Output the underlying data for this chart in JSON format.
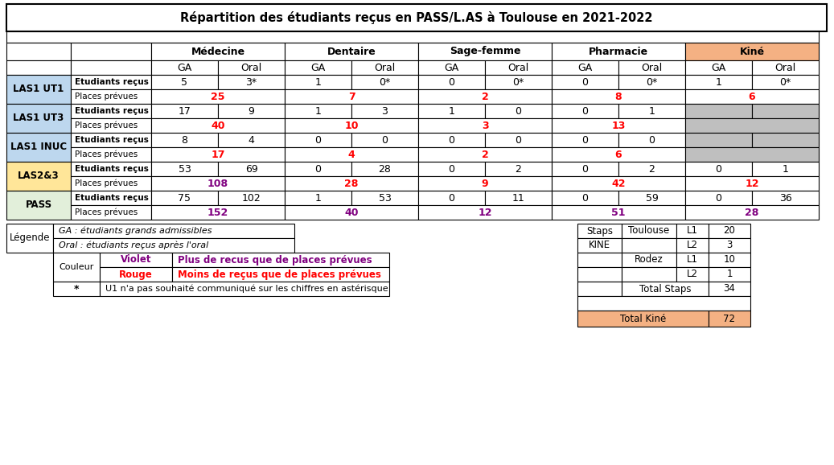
{
  "title": "Répartition des étudiants reçus en PASS/L.AS à Toulouse en 2021-2022",
  "kine_header_bg": "#f4b183",
  "blue_row_bg": "#bdd7ee",
  "yellow_row_bg": "#ffe699",
  "green_row_bg": "#e2efda",
  "gray_cell_bg": "#bfbfbf",
  "orange_total_bg": "#f4b183",
  "col_headers_top": [
    "Médecine",
    "Dentaire",
    "Sage-femme",
    "Pharmacie",
    "Kiné"
  ],
  "col_headers_sub": [
    "GA",
    "Oral",
    "GA",
    "Oral",
    "GA",
    "Oral",
    "GA",
    "Oral",
    "GA",
    "Oral"
  ],
  "row_groups": [
    {
      "label": "LAS1 UT1",
      "bg": "#bdd7ee",
      "rows": [
        {
          "type": "etudiants",
          "label": "Etudiants reçus",
          "values": [
            "5",
            "3*",
            "1",
            "0*",
            "0",
            "0*",
            "0",
            "0*",
            "1",
            "0*"
          ],
          "value_colors": [
            "black",
            "black",
            "black",
            "black",
            "black",
            "black",
            "black",
            "black",
            "black",
            "black"
          ]
        },
        {
          "type": "places",
          "label": "Places prévues",
          "pair_values": [
            "25",
            "7",
            "2",
            "8",
            "6"
          ],
          "pair_colors": [
            "red",
            "red",
            "red",
            "red",
            "red"
          ]
        }
      ]
    },
    {
      "label": "LAS1 UT3",
      "bg": "#bdd7ee",
      "rows": [
        {
          "type": "etudiants",
          "label": "Etudiants reçus",
          "values": [
            "17",
            "9",
            "1",
            "3",
            "1",
            "0",
            "0",
            "1",
            "",
            ""
          ],
          "value_colors": [
            "black",
            "black",
            "black",
            "black",
            "black",
            "black",
            "black",
            "black",
            "",
            ""
          ]
        },
        {
          "type": "places",
          "label": "Places prévues",
          "pair_values": [
            "40",
            "10",
            "3",
            "13",
            ""
          ],
          "pair_colors": [
            "red",
            "red",
            "red",
            "red",
            ""
          ]
        }
      ]
    },
    {
      "label": "LAS1 INUC",
      "bg": "#bdd7ee",
      "rows": [
        {
          "type": "etudiants",
          "label": "Etudiants reçus",
          "values": [
            "8",
            "4",
            "0",
            "0",
            "0",
            "0",
            "0",
            "0",
            "",
            ""
          ],
          "value_colors": [
            "black",
            "black",
            "black",
            "black",
            "black",
            "black",
            "black",
            "black",
            "",
            ""
          ]
        },
        {
          "type": "places",
          "label": "Places prévues",
          "pair_values": [
            "17",
            "4",
            "2",
            "6",
            ""
          ],
          "pair_colors": [
            "red",
            "red",
            "red",
            "red",
            ""
          ]
        }
      ]
    },
    {
      "label": "LAS2&3",
      "bg": "#ffe699",
      "rows": [
        {
          "type": "etudiants",
          "label": "Etudiants reçus",
          "values": [
            "53",
            "69",
            "0",
            "28",
            "0",
            "2",
            "0",
            "2",
            "0",
            "1"
          ],
          "value_colors": [
            "black",
            "black",
            "black",
            "black",
            "black",
            "black",
            "black",
            "black",
            "black",
            "black"
          ]
        },
        {
          "type": "places",
          "label": "Places prévues",
          "pair_values": [
            "108",
            "28",
            "9",
            "42",
            "12"
          ],
          "pair_colors": [
            "purple",
            "red",
            "red",
            "red",
            "red"
          ]
        }
      ]
    },
    {
      "label": "PASS",
      "bg": "#e2efda",
      "rows": [
        {
          "type": "etudiants",
          "label": "Etudiants reçus",
          "values": [
            "75",
            "102",
            "1",
            "53",
            "0",
            "11",
            "0",
            "59",
            "0",
            "36"
          ],
          "value_colors": [
            "black",
            "black",
            "black",
            "black",
            "black",
            "black",
            "black",
            "black",
            "black",
            "black"
          ]
        },
        {
          "type": "places",
          "label": "Places prévues",
          "pair_values": [
            "152",
            "40",
            "12",
            "51",
            "28"
          ],
          "pair_colors": [
            "purple",
            "purple",
            "purple",
            "purple",
            "purple"
          ]
        }
      ]
    }
  ],
  "staps_table": [
    [
      "Staps",
      "Toulouse",
      "L1",
      "20"
    ],
    [
      "KINE",
      "",
      "L2",
      "3"
    ],
    [
      "",
      "Rodez",
      "L1",
      "10"
    ],
    [
      "",
      "",
      "L2",
      "1"
    ],
    [
      "",
      "Total Staps",
      "",
      "34"
    ]
  ],
  "total_kine": "72"
}
